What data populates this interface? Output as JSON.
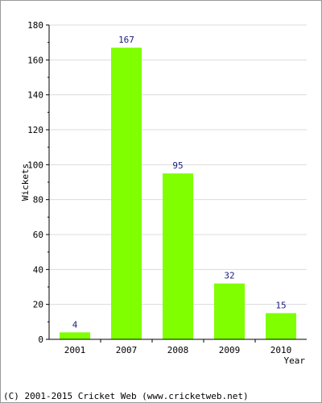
{
  "chart_data": {
    "type": "bar",
    "categories": [
      "2001",
      "2007",
      "2008",
      "2009",
      "2010"
    ],
    "values": [
      4,
      167,
      95,
      32,
      15
    ],
    "data_labels": [
      "4",
      "167",
      "95",
      "32",
      "15"
    ],
    "xlabel": "Year",
    "ylabel": "Wickets",
    "ylim": [
      0,
      180
    ],
    "yticks": [
      0,
      20,
      40,
      60,
      80,
      100,
      120,
      140,
      160,
      180
    ],
    "ytick_labels": [
      "0",
      "20",
      "40",
      "60",
      "80",
      "100",
      "120",
      "140",
      "160",
      "180"
    ],
    "grid": true,
    "colors": {
      "bar": "#7fff00",
      "data_label": "#1a1a80",
      "grid": "#dcdcdc"
    }
  },
  "footer": {
    "credit": "(C) 2001-2015 Cricket Web (www.cricketweb.net)"
  }
}
